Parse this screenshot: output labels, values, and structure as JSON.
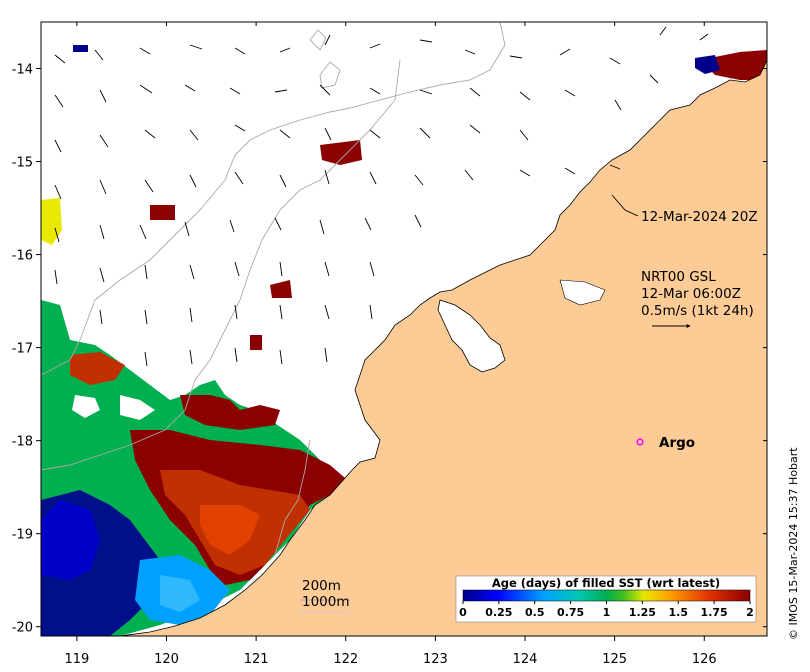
{
  "map": {
    "x_ticks": [
      {
        "value": 119,
        "label": "119"
      },
      {
        "value": 120,
        "label": "120"
      },
      {
        "value": 121,
        "label": "121"
      },
      {
        "value": 122,
        "label": "122"
      },
      {
        "value": 123,
        "label": "123"
      },
      {
        "value": 124,
        "label": "124"
      },
      {
        "value": 125,
        "label": "125"
      },
      {
        "value": 126,
        "label": "126"
      }
    ],
    "y_ticks": [
      {
        "value": -14,
        "label": "-14"
      },
      {
        "value": -15,
        "label": "-15"
      },
      {
        "value": -16,
        "label": "-16"
      },
      {
        "value": -17,
        "label": "-17"
      },
      {
        "value": -18,
        "label": "-18"
      },
      {
        "value": -19,
        "label": "-19"
      },
      {
        "value": -20,
        "label": "-20"
      }
    ],
    "lon_range": [
      118.6,
      126.7
    ],
    "lat_range": [
      -20.1,
      -13.5
    ],
    "colors": {
      "land": "#FDCB95",
      "ocean": "#FFFFFF",
      "bathymetry": "#aaaaaa",
      "coast": "#000000"
    }
  },
  "annotations": {
    "coast_time": "12-Mar-2024 20Z",
    "current_label_line1": "NRT00 GSL",
    "current_label_line2": "12-Mar 06:00Z",
    "current_label_line3": "0.5m/s (1kt 24h)",
    "argo_label": "Argo",
    "argo_marker_color": "#FF00FF",
    "contour_200": "200m",
    "contour_1000": "1000m"
  },
  "colorbar": {
    "title": "Age (days) of filled SST (wrt latest)",
    "ticks": [
      "0",
      "0.25",
      "0.5",
      "0.75",
      "1",
      "1.25",
      "1.5",
      "1.75",
      "2"
    ],
    "range": [
      0,
      2
    ],
    "stops": [
      "#00008B",
      "#0000FF",
      "#00A0FF",
      "#00C8B4",
      "#00B050",
      "#40C020",
      "#E8E800",
      "#FFA000",
      "#E03000",
      "#8B0000"
    ]
  },
  "credit": "© IMOS 15-Mar-2024 15:37 Hobart"
}
